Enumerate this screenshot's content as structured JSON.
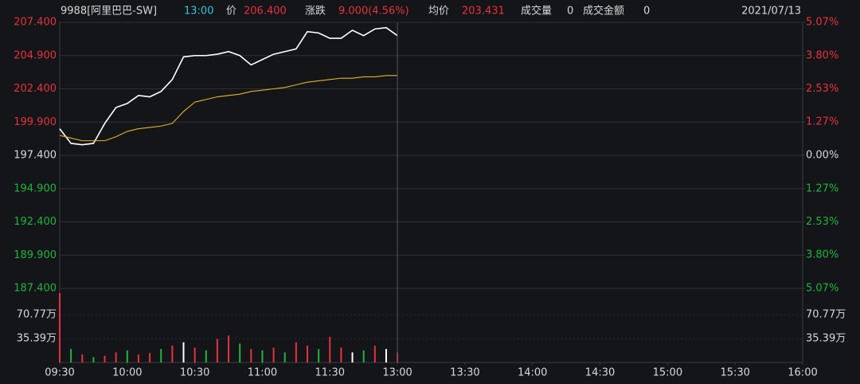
{
  "header": {
    "code": "9988[阿里巴巴-SW]",
    "time": "13:00",
    "price_label": "价",
    "price": "206.400",
    "change_label": "涨跌",
    "change": "9.000(4.56%)",
    "avg_label": "均价",
    "avg": "203.431",
    "volume_label": "成交量",
    "volume": "0",
    "amount_label": "成交金额",
    "amount": "0",
    "date": "2021/07/13"
  },
  "chart_data": [
    {
      "type": "line",
      "x": [
        0,
        5,
        10,
        15,
        20,
        25,
        30,
        35,
        40,
        45,
        50,
        55,
        60,
        65,
        70,
        75,
        80,
        85,
        90,
        95,
        100,
        105,
        110,
        115,
        120,
        125,
        130,
        135,
        140,
        145,
        150
      ],
      "series": [
        {
          "name": "价",
          "color": "#ffffff",
          "values": [
            199.4,
            198.3,
            198.2,
            198.3,
            199.8,
            201.0,
            201.3,
            201.9,
            201.8,
            202.2,
            203.1,
            204.8,
            204.9,
            204.9,
            205.0,
            205.2,
            204.9,
            204.2,
            204.6,
            205.0,
            205.2,
            205.4,
            206.7,
            206.6,
            206.2,
            206.2,
            206.8,
            206.4,
            206.9,
            207.0,
            206.4
          ]
        },
        {
          "name": "均价",
          "color": "#e6b422",
          "values": [
            198.9,
            198.7,
            198.5,
            198.5,
            198.5,
            198.8,
            199.2,
            199.4,
            199.5,
            199.6,
            199.8,
            200.7,
            201.4,
            201.6,
            201.8,
            201.9,
            202.0,
            202.2,
            202.3,
            202.4,
            202.5,
            202.7,
            202.9,
            203.0,
            203.1,
            203.2,
            203.2,
            203.3,
            203.3,
            203.4,
            203.4
          ]
        }
      ],
      "xlim": [
        0,
        330
      ],
      "ylim": [
        187.4,
        207.4
      ],
      "yticks": [
        {
          "value": 207.4,
          "label": "207.400"
        },
        {
          "value": 204.9,
          "label": "204.900"
        },
        {
          "value": 202.4,
          "label": "202.400"
        },
        {
          "value": 199.9,
          "label": "199.900"
        },
        {
          "value": 197.4,
          "label": "197.400"
        },
        {
          "value": 194.9,
          "label": "194.900"
        },
        {
          "value": 192.4,
          "label": "192.400"
        },
        {
          "value": 189.9,
          "label": "189.900"
        },
        {
          "value": 187.4,
          "label": "187.400"
        }
      ],
      "y2lim": [
        -5.07,
        5.07
      ],
      "y2ticks": [
        {
          "value": 5.07,
          "label": "5.07%"
        },
        {
          "value": 3.8,
          "label": "3.80%"
        },
        {
          "value": 2.53,
          "label": "2.53%"
        },
        {
          "value": 1.27,
          "label": "1.27%"
        },
        {
          "value": 0,
          "label": "0.00%"
        },
        {
          "value": -1.27,
          "label": "1.27%"
        },
        {
          "value": -2.53,
          "label": "2.53%"
        },
        {
          "value": -3.8,
          "label": "3.80%"
        },
        {
          "value": -5.07,
          "label": "5.07%"
        }
      ],
      "grid": true
    },
    {
      "type": "bar",
      "x": [
        0,
        5,
        10,
        15,
        20,
        25,
        30,
        35,
        40,
        45,
        50,
        55,
        60,
        65,
        70,
        75,
        80,
        85,
        90,
        95,
        100,
        105,
        110,
        115,
        120,
        125,
        130,
        135,
        140,
        145,
        150
      ],
      "series": [
        {
          "name": "成交量",
          "values": [
            103,
            20,
            12,
            8,
            10,
            15,
            18,
            12,
            14,
            20,
            25,
            30,
            22,
            18,
            35,
            40,
            28,
            20,
            18,
            22,
            15,
            30,
            25,
            20,
            38,
            22,
            15,
            18,
            25,
            20,
            15
          ],
          "colors": [
            "#e8313c",
            "#1fb53c",
            "#e8313c",
            "#1fb53c",
            "#e8313c",
            "#e8313c",
            "#1fb53c",
            "#e8313c",
            "#e8313c",
            "#1fb53c",
            "#e8313c",
            "#ffffff",
            "#e8313c",
            "#1fb53c",
            "#e8313c",
            "#e8313c",
            "#1fb53c",
            "#e8313c",
            "#1fb53c",
            "#e8313c",
            "#1fb53c",
            "#e8313c",
            "#e8313c",
            "#1fb53c",
            "#e8313c",
            "#e8313c",
            "#ffffff",
            "#1fb53c",
            "#e8313c",
            "#ffffff",
            "#e8313c"
          ]
        }
      ],
      "xlim": [
        0,
        330
      ],
      "xticks": [
        {
          "value": 0,
          "label": "09:30"
        },
        {
          "value": 30,
          "label": "10:00"
        },
        {
          "value": 60,
          "label": "10:30"
        },
        {
          "value": 90,
          "label": "11:00"
        },
        {
          "value": 120,
          "label": "11:30"
        },
        {
          "value": 150,
          "label": "13:00"
        },
        {
          "value": 180,
          "label": "13:30"
        },
        {
          "value": 210,
          "label": "14:00"
        },
        {
          "value": 240,
          "label": "14:30"
        },
        {
          "value": 270,
          "label": "15:00"
        },
        {
          "value": 300,
          "label": "15:30"
        },
        {
          "value": 330,
          "label": "16:00"
        }
      ],
      "ylim": [
        0,
        110
      ],
      "yticks": [
        {
          "value": 35.39,
          "label": "35.39万"
        },
        {
          "value": 70.77,
          "label": "70.77万"
        }
      ],
      "grid": true
    }
  ]
}
